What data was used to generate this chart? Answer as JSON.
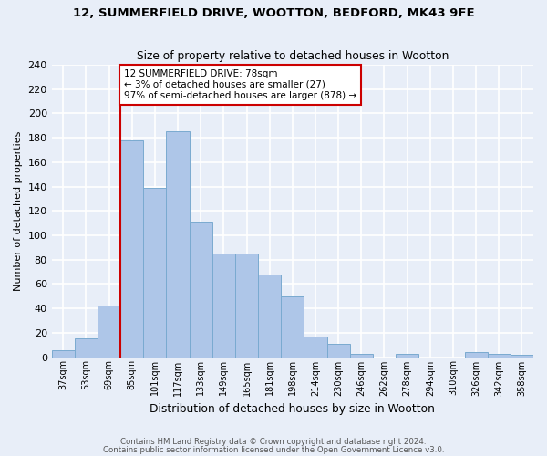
{
  "title1": "12, SUMMERFIELD DRIVE, WOOTTON, BEDFORD, MK43 9FE",
  "title2": "Size of property relative to detached houses in Wootton",
  "xlabel": "Distribution of detached houses by size in Wootton",
  "ylabel": "Number of detached properties",
  "categories": [
    "37sqm",
    "53sqm",
    "69sqm",
    "85sqm",
    "101sqm",
    "117sqm",
    "133sqm",
    "149sqm",
    "165sqm",
    "181sqm",
    "198sqm",
    "214sqm",
    "230sqm",
    "246sqm",
    "262sqm",
    "278sqm",
    "294sqm",
    "310sqm",
    "326sqm",
    "342sqm",
    "358sqm"
  ],
  "values": [
    6,
    15,
    42,
    178,
    139,
    185,
    111,
    85,
    85,
    68,
    50,
    17,
    11,
    3,
    0,
    3,
    0,
    0,
    4,
    3,
    2
  ],
  "bar_color": "#aec6e8",
  "bar_edge_color": "#7aaad0",
  "vline_color": "#cc0000",
  "vline_x_index": 3,
  "annotation_text": "12 SUMMERFIELD DRIVE: 78sqm\n← 3% of detached houses are smaller (27)\n97% of semi-detached houses are larger (878) →",
  "annotation_box_color": "#ffffff",
  "annotation_box_edge": "#cc0000",
  "footer1": "Contains HM Land Registry data © Crown copyright and database right 2024.",
  "footer2": "Contains public sector information licensed under the Open Government Licence v3.0.",
  "background_color": "#e8eef8",
  "grid_color": "#ffffff",
  "ylim": [
    0,
    240
  ],
  "yticks": [
    0,
    20,
    40,
    60,
    80,
    100,
    120,
    140,
    160,
    180,
    200,
    220,
    240
  ],
  "n_bins": 21,
  "bin_width": 1.0
}
